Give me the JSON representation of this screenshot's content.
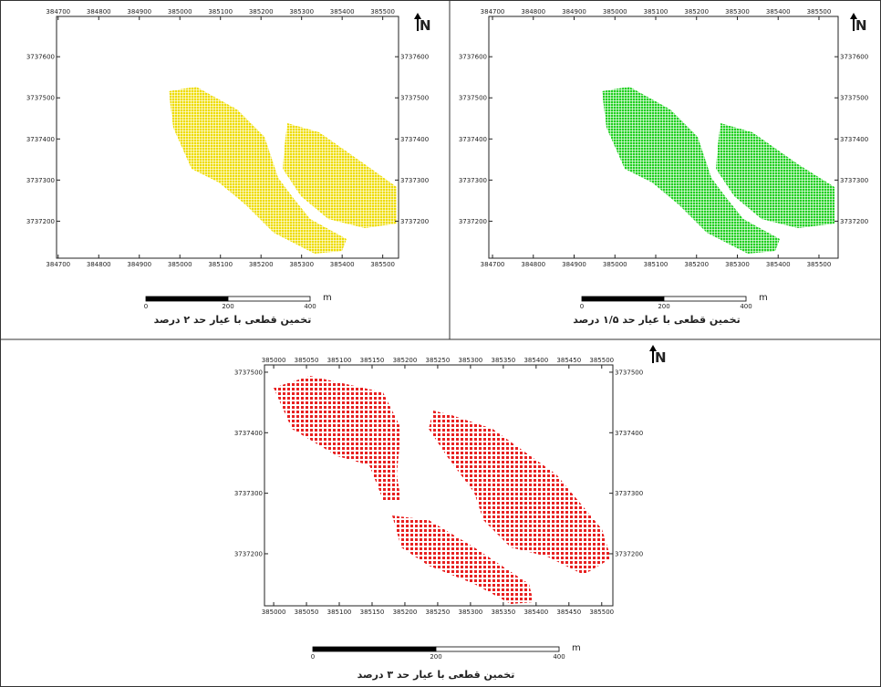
{
  "panels": [
    {
      "x_ticks": [
        384700,
        384800,
        384900,
        385000,
        385100,
        385200,
        385300,
        385400,
        385500
      ],
      "y_ticks": [
        3737200,
        3737300,
        3737400,
        3737500,
        3737600
      ],
      "xlim": [
        384696,
        385539
      ],
      "ylim": [
        3737110,
        3737698
      ],
      "north": "N",
      "scale_labels": [
        0,
        200,
        400
      ],
      "scale_unit": "m",
      "caption": "تخمین قطعی با عیار حد ۲ درصد"
    },
    {
      "x_ticks": [
        384700,
        384800,
        384900,
        385000,
        385100,
        385200,
        385300,
        385400,
        385500
      ],
      "y_ticks": [
        3737200,
        3737300,
        3737400,
        3737500,
        3737600
      ],
      "xlim": [
        384691,
        385547
      ],
      "ylim": [
        3737110,
        3737698
      ],
      "north": "N",
      "scale_labels": [
        0,
        200,
        400
      ],
      "scale_unit": "m",
      "caption": "تخمین قطعی با عیار حد ۱/۵ درصد"
    },
    {
      "x_ticks": [
        385000,
        385050,
        385100,
        385150,
        385200,
        385250,
        385300,
        385350,
        385400,
        385450,
        385500
      ],
      "y_ticks": [
        3737200,
        3737300,
        3737400,
        3737500
      ],
      "xlim": [
        384986,
        385517
      ],
      "ylim": [
        3737114,
        3737512
      ],
      "north": "N",
      "scale_labels": [
        0,
        200,
        400
      ],
      "scale_unit": "m",
      "caption": "تخمین قطعی با عیار حد ۳ درصد"
    }
  ]
}
